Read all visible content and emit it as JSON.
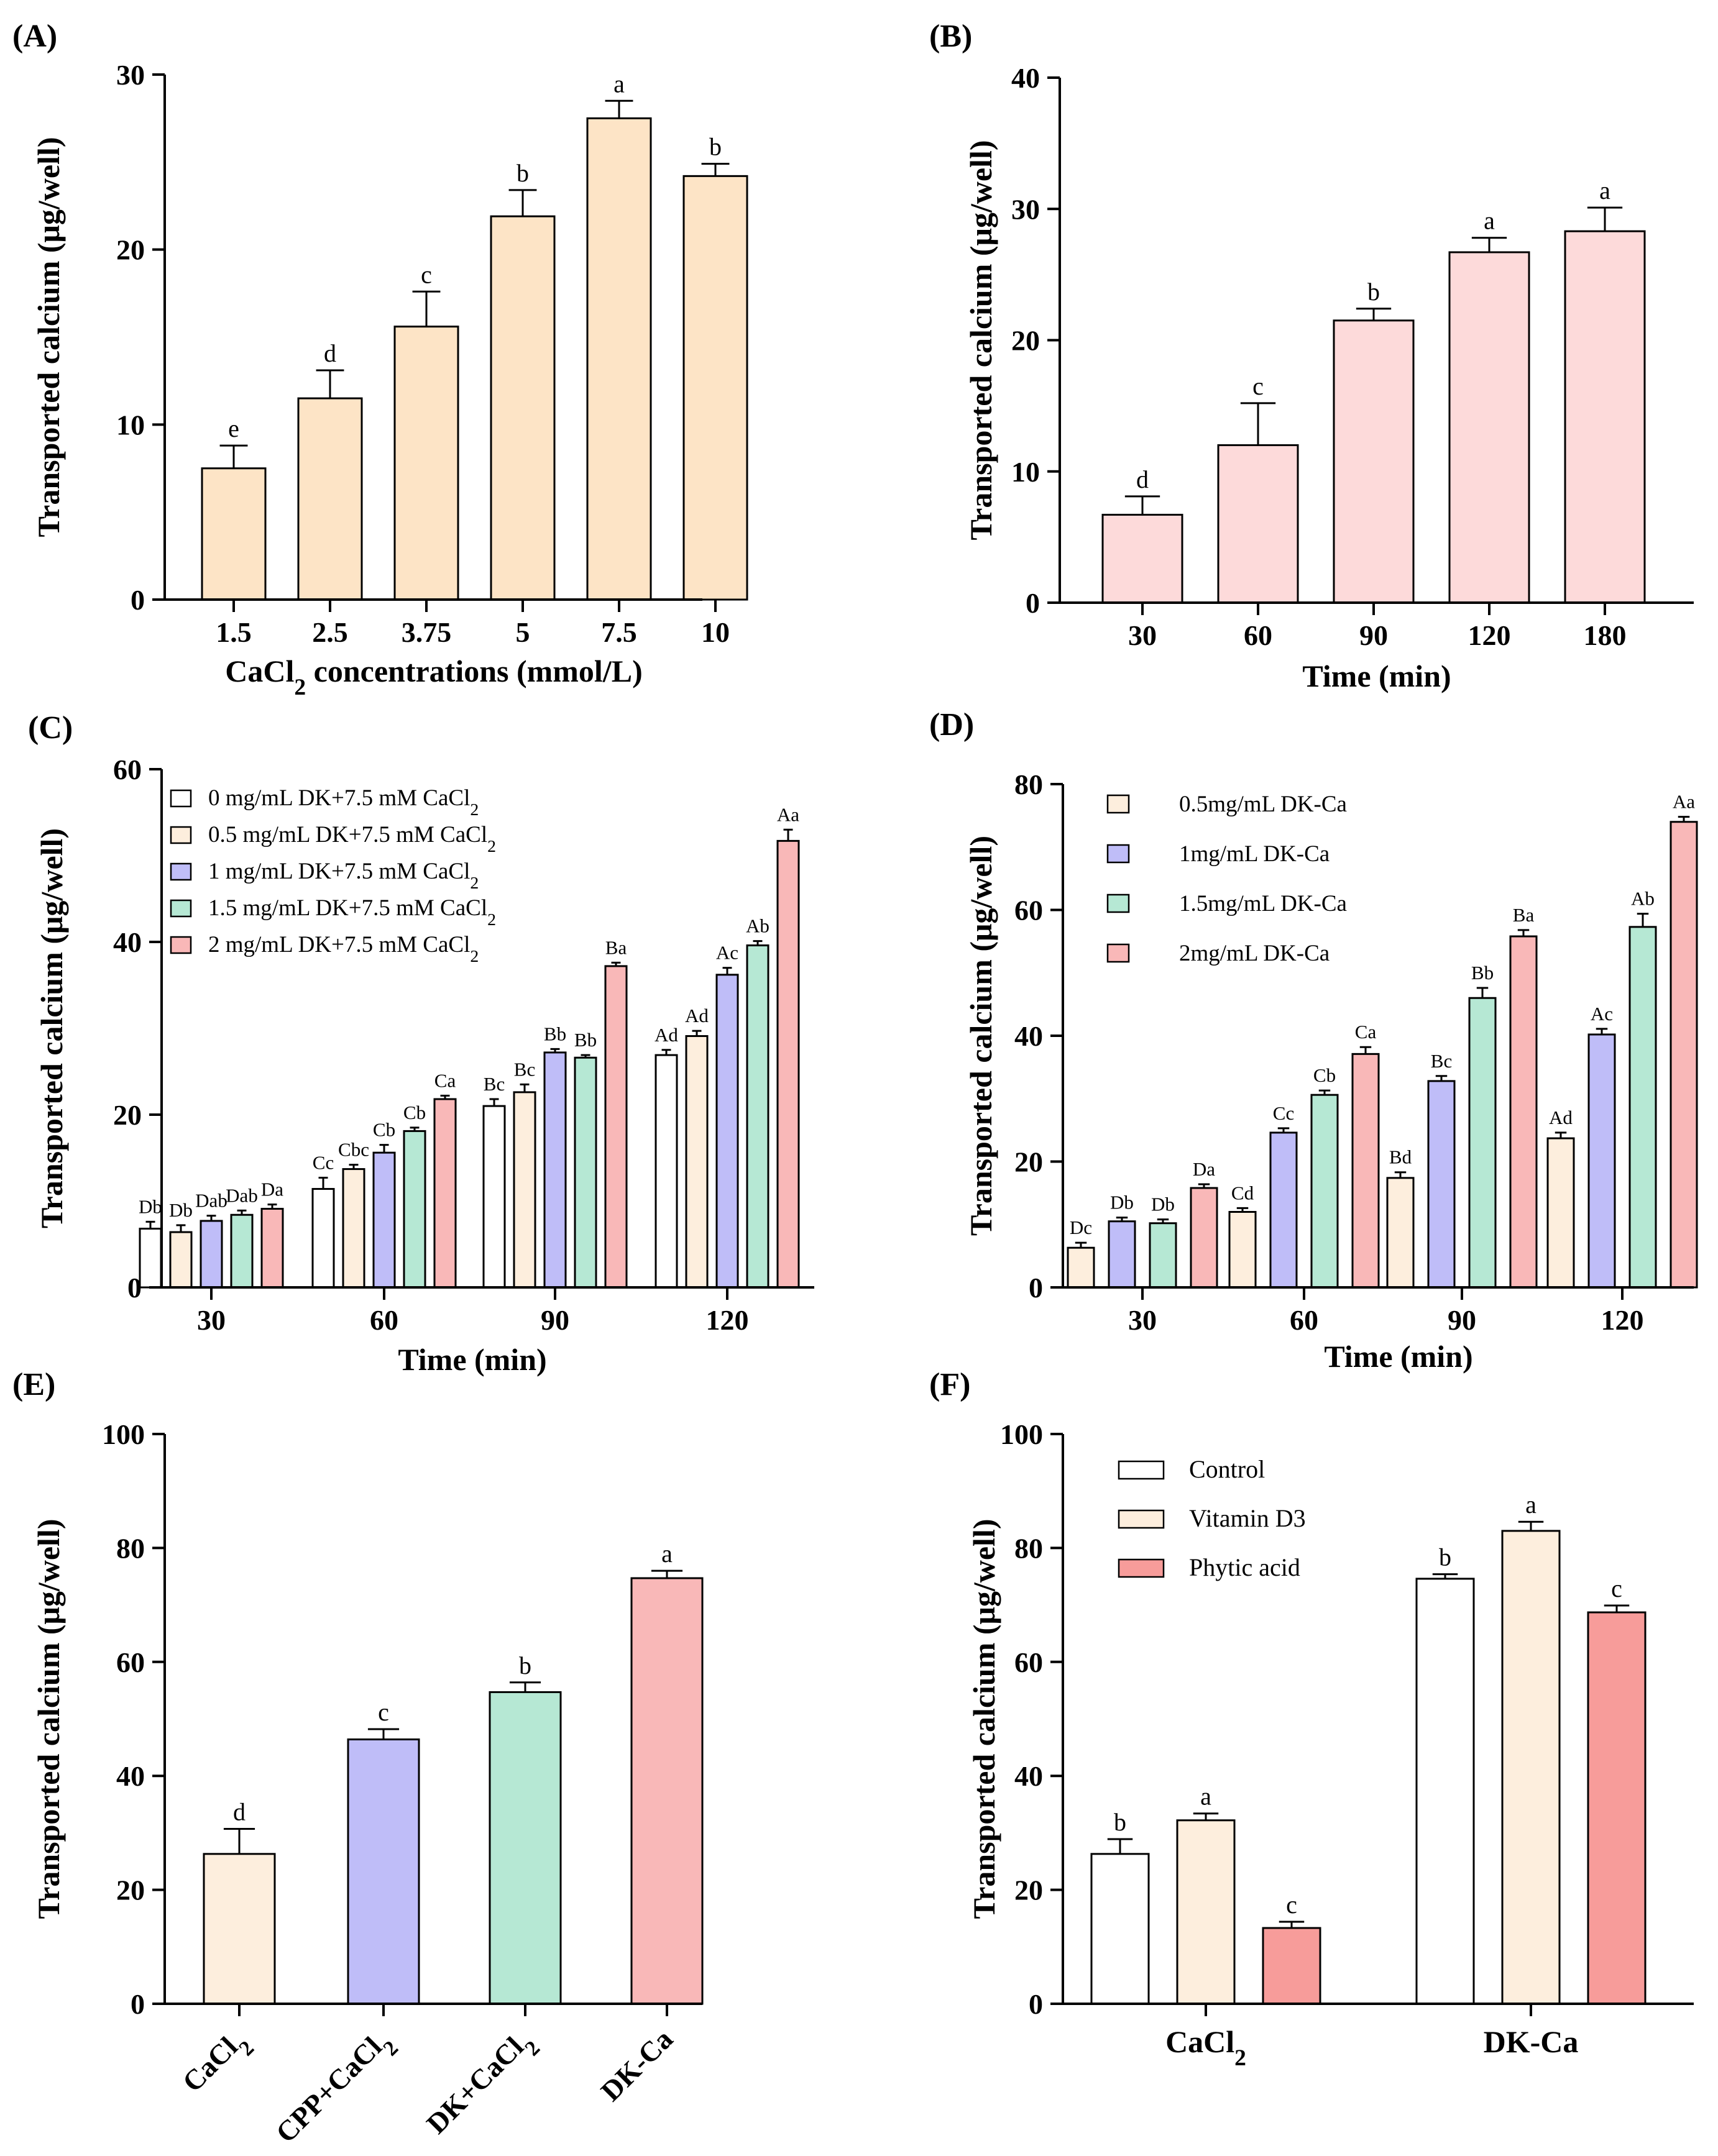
{
  "colors": {
    "peach": "#fde4c6",
    "light_peach": "#fdeedd",
    "pink": "#fddada",
    "white": "#ffffff",
    "lavender": "#bfbdf8",
    "mint": "#b6e8d4",
    "rose": "#f9b8b8",
    "salmon": "#f79c9a",
    "stroke": "#000000"
  },
  "chart_data": [
    {
      "panel": "(A)",
      "type": "bar",
      "categories": [
        "1.5",
        "2.5",
        "3.75",
        "5",
        "7.5",
        "10"
      ],
      "values": [
        7.5,
        11.5,
        15.6,
        21.9,
        27.5,
        24.2
      ],
      "errors": [
        1.3,
        1.6,
        2.0,
        1.5,
        1.0,
        0.7
      ],
      "letters": [
        "e",
        "d",
        "c",
        "b",
        "a",
        "b"
      ],
      "xlabel": "CaCl₂ concentrations  (mmol/L)",
      "ylabel": "Transported calcium (μg/well)",
      "ylim": [
        0,
        30
      ],
      "yticks": [
        "0",
        "10",
        "20",
        "30"
      ],
      "color": "peach"
    },
    {
      "panel": "(B)",
      "type": "bar",
      "categories": [
        "30",
        "60",
        "90",
        "120",
        "180"
      ],
      "values": [
        6.7,
        12.0,
        21.5,
        26.7,
        28.3
      ],
      "errors": [
        1.4,
        3.2,
        0.9,
        1.1,
        1.8
      ],
      "letters": [
        "d",
        "c",
        "b",
        "a",
        "a"
      ],
      "xlabel": "Time (min)",
      "ylabel": "Transported calcium  (μg/well)",
      "ylim": [
        0,
        40
      ],
      "yticks": [
        "0",
        "10",
        "20",
        "30",
        "40"
      ],
      "color": "pink"
    },
    {
      "panel": "(C)",
      "type": "bar",
      "categories": [
        "30",
        "60",
        "90",
        "120"
      ],
      "series": [
        {
          "name": "0 mg/mL DK+7.5 mM CaCl₂",
          "color": "white",
          "values": [
            6.8,
            11.4,
            21.0,
            26.9
          ],
          "errors": [
            0.8,
            1.3,
            0.8,
            0.6
          ],
          "letters": [
            "Db",
            "Cc",
            "Bc",
            "Ad"
          ]
        },
        {
          "name": "0.5 mg/mL DK+7.5 mM CaCl₂",
          "color": "light_peach",
          "values": [
            6.4,
            13.7,
            22.6,
            29.1
          ],
          "errors": [
            0.8,
            0.5,
            0.9,
            0.6
          ],
          "letters": [
            "Db",
            "Cbc",
            "Bc",
            "Ad"
          ]
        },
        {
          "name": "1 mg/mL DK+7.5 mM CaCl₂",
          "color": "lavender",
          "values": [
            7.7,
            15.6,
            27.2,
            36.2
          ],
          "errors": [
            0.6,
            0.9,
            0.4,
            0.8
          ],
          "letters": [
            "Dab",
            "Cb",
            "Bb",
            "Ac"
          ]
        },
        {
          "name": "1.5 mg/mL DK+7.5 mM CaCl₂",
          "color": "mint",
          "values": [
            8.4,
            18.1,
            26.6,
            39.6
          ],
          "errors": [
            0.5,
            0.4,
            0.3,
            0.5
          ],
          "letters": [
            "Dab",
            "Cb",
            "Bb",
            "Ab"
          ]
        },
        {
          "name": "2 mg/mL DK+7.5 mM CaCl₂",
          "color": "rose",
          "values": [
            9.1,
            21.8,
            37.2,
            51.7
          ],
          "errors": [
            0.5,
            0.4,
            0.4,
            1.3
          ],
          "letters": [
            "Da",
            "Ca",
            "Ba",
            "Aa"
          ]
        }
      ],
      "xlabel": "Time (min)",
      "ylabel": "Transported calcium (μg/well)",
      "ylim": [
        0,
        60
      ],
      "yticks": [
        "0",
        "20",
        "40",
        "60"
      ]
    },
    {
      "panel": "(D)",
      "type": "bar",
      "categories": [
        "30",
        "60",
        "90",
        "120"
      ],
      "series": [
        {
          "name": "0.5mg/mL DK-Ca",
          "color": "light_peach",
          "values": [
            6.3,
            12.0,
            17.4,
            23.7
          ],
          "errors": [
            0.8,
            0.6,
            0.9,
            0.9
          ],
          "letters": [
            "Dc",
            "Cd",
            "Bd",
            "Ad"
          ]
        },
        {
          "name": "1mg/mL DK-Ca",
          "color": "lavender",
          "values": [
            10.5,
            24.6,
            32.8,
            40.2
          ],
          "errors": [
            0.6,
            0.7,
            0.8,
            0.9
          ],
          "letters": [
            "Db",
            "Cc",
            "Bc",
            "Ac"
          ]
        },
        {
          "name": "1.5mg/mL DK-Ca",
          "color": "mint",
          "values": [
            10.2,
            30.6,
            46.0,
            57.3
          ],
          "errors": [
            0.6,
            0.7,
            1.6,
            2.1
          ],
          "letters": [
            "Db",
            "Cb",
            "Bb",
            "Ab"
          ]
        },
        {
          "name": "2mg/mL DK-Ca",
          "color": "rose",
          "values": [
            15.8,
            37.1,
            55.8,
            74.0
          ],
          "errors": [
            0.6,
            1.1,
            1.0,
            0.8
          ],
          "letters": [
            "Da",
            "Ca",
            "Ba",
            "Aa"
          ]
        }
      ],
      "xlabel": "Time  (min)",
      "ylabel": "Transported calcium (μg/well)",
      "ylim": [
        0,
        80
      ],
      "yticks": [
        "0",
        "20",
        "40",
        "60",
        "80"
      ]
    },
    {
      "panel": "(E)",
      "type": "bar",
      "categories": [
        "CaCl₂",
        "CPP+CaCl₂",
        "DK+CaCl₂",
        "DK-Ca"
      ],
      "values": [
        26.3,
        46.4,
        54.7,
        74.7
      ],
      "errors": [
        4.4,
        1.8,
        1.7,
        1.3
      ],
      "letters": [
        "d",
        "c",
        "b",
        "a"
      ],
      "bar_colors": [
        "light_peach",
        "lavender",
        "mint",
        "rose"
      ],
      "ylabel": "Transported calcium (μg/well)",
      "ylim": [
        0,
        100
      ],
      "yticks": [
        "0",
        "20",
        "40",
        "60",
        "80",
        "100"
      ]
    },
    {
      "panel": "(F)",
      "type": "bar",
      "categories": [
        "CaCl₂",
        "DK-Ca"
      ],
      "series": [
        {
          "name": "Control",
          "color": "white",
          "values": [
            26.3,
            74.6
          ],
          "errors": [
            2.6,
            0.8
          ],
          "letters": [
            "b",
            "b"
          ]
        },
        {
          "name": "Vitamin D3",
          "color": "light_peach",
          "values": [
            32.2,
            83.0
          ],
          "errors": [
            1.2,
            1.6
          ],
          "letters": [
            "a",
            "a"
          ]
        },
        {
          "name": "Phytic acid",
          "color": "salmon",
          "values": [
            13.3,
            68.7
          ],
          "errors": [
            1.1,
            1.2
          ],
          "letters": [
            "c",
            "c"
          ]
        }
      ],
      "ylabel": "Transported calcium (μg/well)",
      "ylim": [
        0,
        100
      ],
      "yticks": [
        "0",
        "20",
        "40",
        "60",
        "80",
        "100"
      ]
    }
  ]
}
